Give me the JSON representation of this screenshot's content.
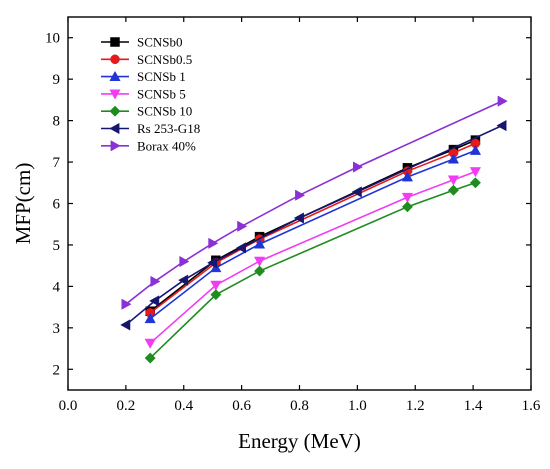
{
  "chart_data": {
    "type": "line",
    "title": "",
    "xlabel": "Energy (MeV)",
    "ylabel": "MFP(cm)",
    "xlim": [
      0.0,
      1.6
    ],
    "ylim": [
      1.5,
      10.5
    ],
    "xticks": [
      0.0,
      0.2,
      0.4,
      0.6,
      0.8,
      1.0,
      1.2,
      1.4,
      1.6
    ],
    "xtick_labels": [
      "0.0",
      "0.2",
      "0.4",
      "0.6",
      "0.8",
      "1.0",
      "1.2",
      "1.4",
      "1.6"
    ],
    "yticks": [
      2,
      3,
      4,
      5,
      6,
      7,
      8,
      9,
      10
    ],
    "ytick_labels": [
      "2",
      "3",
      "4",
      "5",
      "6",
      "7",
      "8",
      "9",
      "10"
    ],
    "grid": false,
    "legend_position": "top-left",
    "series": [
      {
        "name": "SCNSb0",
        "color": "#000000",
        "marker": "square",
        "x": [
          0.284,
          0.511,
          0.662,
          1.173,
          1.332,
          1.408
        ],
        "y": [
          3.4,
          4.63,
          5.2,
          6.86,
          7.3,
          7.53
        ]
      },
      {
        "name": "SCNSb0.5",
        "color": "#e8191a",
        "marker": "circle",
        "x": [
          0.284,
          0.511,
          0.662,
          1.173,
          1.332,
          1.408
        ],
        "y": [
          3.36,
          4.57,
          5.14,
          6.78,
          7.22,
          7.45
        ]
      },
      {
        "name": "SCNSb 1",
        "color": "#1f35d6",
        "marker": "triangle-up",
        "x": [
          0.284,
          0.511,
          0.662,
          1.173,
          1.332,
          1.408
        ],
        "y": [
          3.22,
          4.45,
          5.02,
          6.64,
          7.07,
          7.28
        ]
      },
      {
        "name": "SCNSb 5",
        "color": "#f23cf2",
        "marker": "triangle-down",
        "x": [
          0.284,
          0.511,
          0.662,
          1.173,
          1.332,
          1.408
        ],
        "y": [
          2.63,
          4.03,
          4.61,
          6.15,
          6.57,
          6.77
        ]
      },
      {
        "name": "SCNSb 10",
        "color": "#1e8c1e",
        "marker": "diamond",
        "x": [
          0.284,
          0.511,
          0.662,
          1.173,
          1.332,
          1.408
        ],
        "y": [
          2.27,
          3.8,
          4.37,
          5.92,
          6.32,
          6.5
        ]
      },
      {
        "name": "Rs 253-G18",
        "color": "#16166e",
        "marker": "triangle-left",
        "x": [
          0.2,
          0.3,
          0.4,
          0.5,
          0.6,
          0.8,
          1.0,
          1.5
        ],
        "y": [
          3.07,
          3.65,
          4.15,
          4.57,
          4.93,
          5.65,
          6.28,
          7.88
        ]
      },
      {
        "name": "Borax 40%",
        "color": "#8b2fd6",
        "marker": "triangle-right",
        "x": [
          0.2,
          0.3,
          0.4,
          0.5,
          0.6,
          0.8,
          1.0,
          1.5
        ],
        "y": [
          3.57,
          4.12,
          4.6,
          5.04,
          5.45,
          6.2,
          6.88,
          8.47
        ]
      }
    ]
  }
}
